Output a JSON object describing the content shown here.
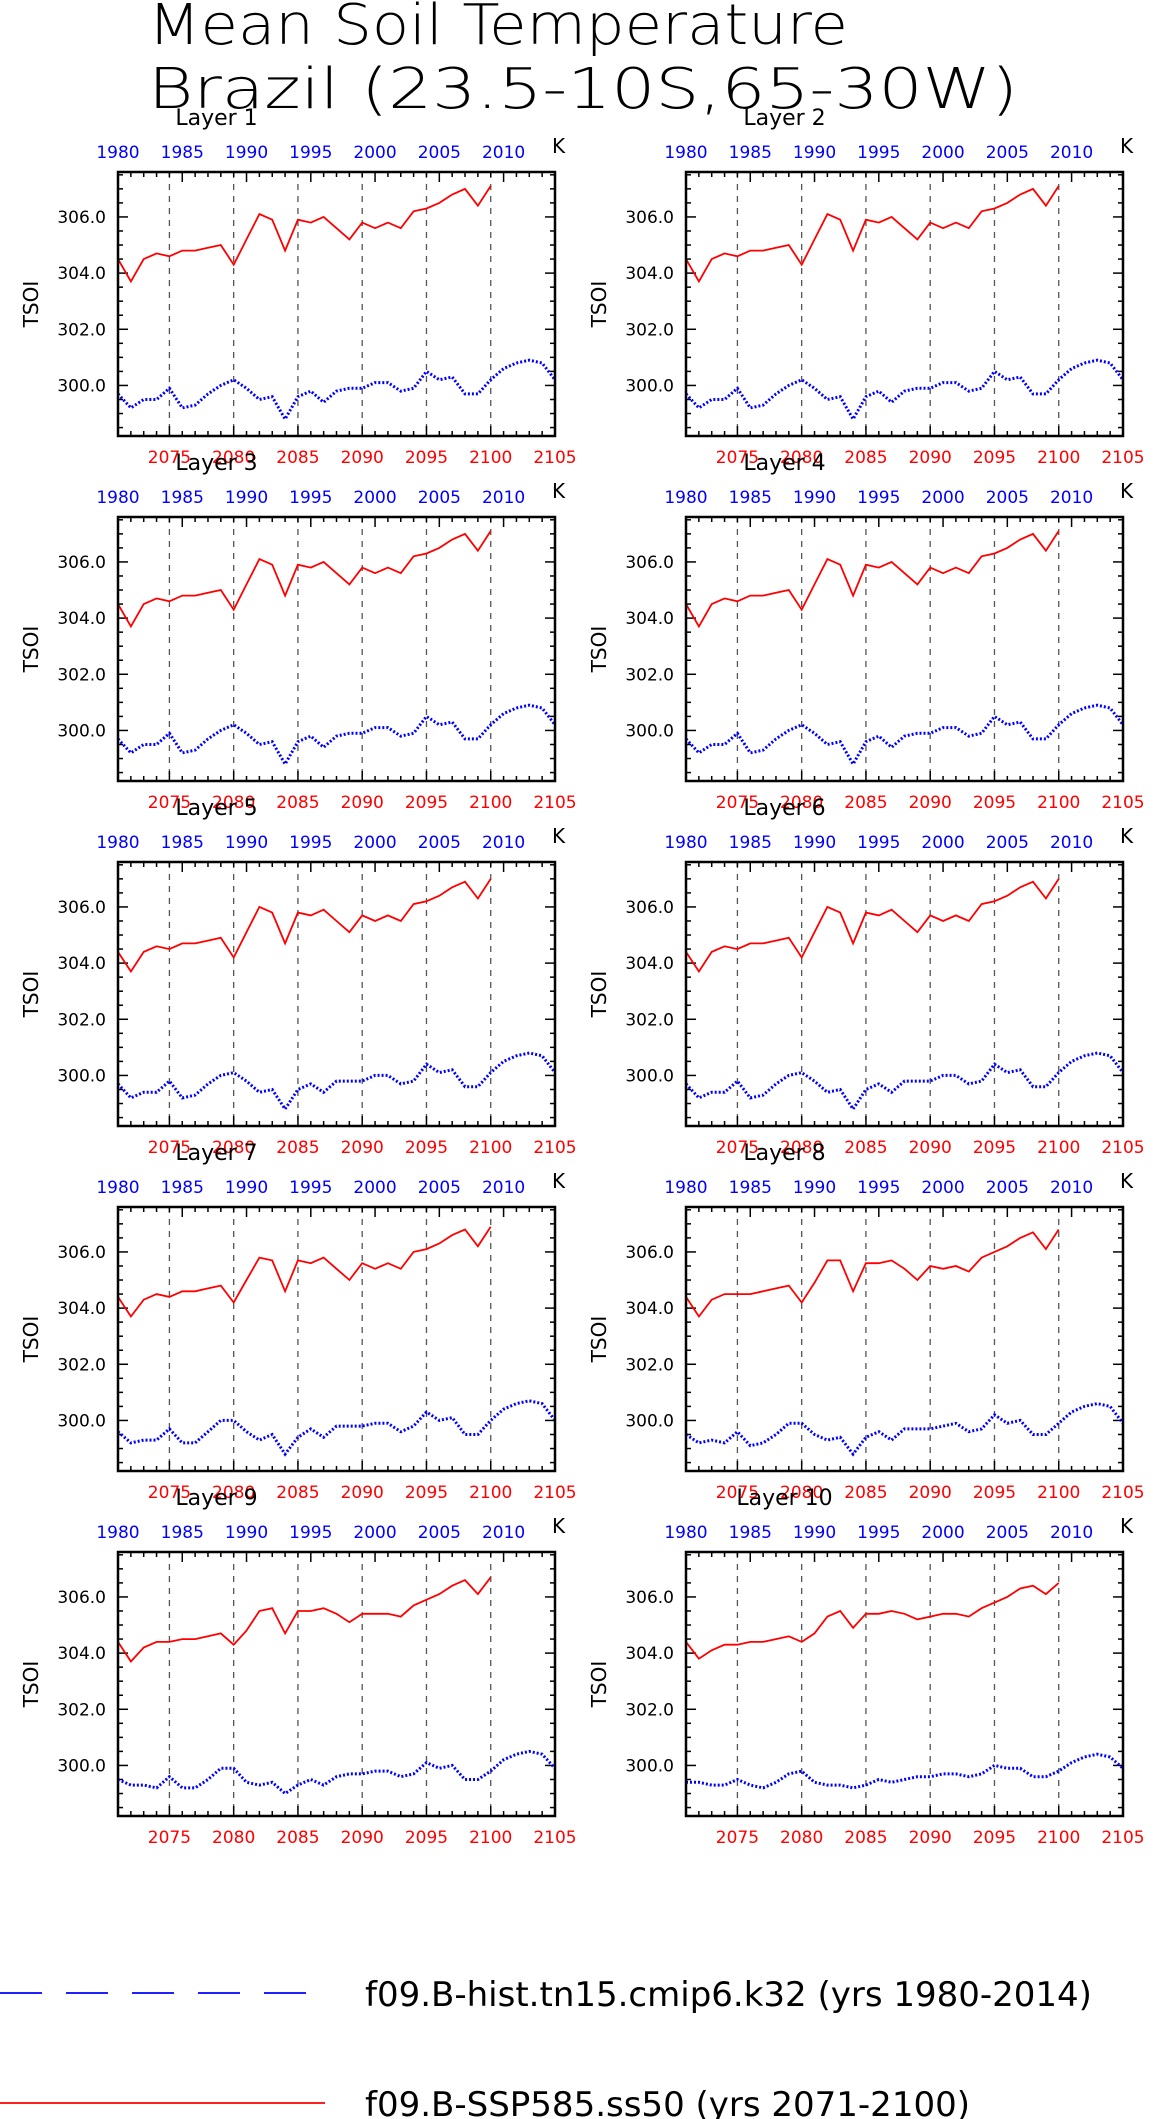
{
  "title_line1": "Mean Soil Temperature",
  "title_line2": "Brazil (23.5-10S,65-30W)",
  "units": "K",
  "ylabel": "TSOI",
  "colors": {
    "hist": "#0000ff",
    "ssp": "#ff0000",
    "axis": "#000000"
  },
  "legend": [
    {
      "label": "f09.B-hist.tn15.cmip6.k32 (yrs 1980-2014)",
      "color": "#0000ff",
      "style": "dashed"
    },
    {
      "label": "f09.B-SSP585.ss50 (yrs 2071-2100)",
      "color": "#ff0000",
      "style": "solid"
    }
  ],
  "chart_data": {
    "type": "line",
    "x_bottom": {
      "label": "",
      "range": [
        2071,
        2105
      ],
      "ticks": [
        2075,
        2080,
        2085,
        2090,
        2095,
        2100,
        2105
      ],
      "color": "#ff0000"
    },
    "x_top": {
      "label": "",
      "range": [
        1980,
        2014
      ],
      "ticks": [
        1980,
        1985,
        1990,
        1995,
        2000,
        2005,
        2010
      ],
      "color": "#0000ff"
    },
    "ylim": [
      298.2,
      307.6
    ],
    "yticks": [
      "300.0",
      "302.0",
      "304.0",
      "306.0"
    ],
    "grid": "vertical dashed lines at bottom ticks 2075-2100",
    "panels": [
      {
        "title": "Layer 1",
        "hist": [
          299.7,
          299.2,
          299.5,
          299.5,
          299.9,
          299.2,
          299.3,
          299.7,
          300.0,
          300.2,
          299.9,
          299.5,
          299.6,
          298.8,
          299.6,
          299.8,
          299.4,
          299.8,
          299.9,
          299.9,
          300.1,
          300.1,
          299.8,
          299.9,
          300.5,
          300.2,
          300.3,
          299.7,
          299.7,
          300.2,
          300.6,
          300.8,
          300.9,
          300.8,
          300.2
        ],
        "ssp": [
          304.5,
          303.7,
          304.5,
          304.7,
          304.6,
          304.8,
          304.8,
          304.9,
          305.0,
          304.3,
          305.2,
          306.1,
          305.9,
          304.8,
          305.9,
          305.8,
          306.0,
          305.6,
          305.2,
          305.8,
          305.6,
          305.8,
          305.6,
          306.2,
          306.3,
          306.5,
          306.8,
          307.0,
          306.4,
          307.1
        ]
      },
      {
        "title": "Layer 2",
        "hist": [
          299.7,
          299.2,
          299.5,
          299.5,
          299.9,
          299.2,
          299.3,
          299.7,
          300.0,
          300.2,
          299.9,
          299.5,
          299.6,
          298.8,
          299.6,
          299.8,
          299.4,
          299.8,
          299.9,
          299.9,
          300.1,
          300.1,
          299.8,
          299.9,
          300.5,
          300.2,
          300.3,
          299.7,
          299.7,
          300.2,
          300.6,
          300.8,
          300.9,
          300.8,
          300.2
        ],
        "ssp": [
          304.5,
          303.7,
          304.5,
          304.7,
          304.6,
          304.8,
          304.8,
          304.9,
          305.0,
          304.3,
          305.2,
          306.1,
          305.9,
          304.8,
          305.9,
          305.8,
          306.0,
          305.6,
          305.2,
          305.8,
          305.6,
          305.8,
          305.6,
          306.2,
          306.3,
          306.5,
          306.8,
          307.0,
          306.4,
          307.1
        ]
      },
      {
        "title": "Layer 3",
        "hist": [
          299.7,
          299.2,
          299.5,
          299.5,
          299.9,
          299.2,
          299.3,
          299.7,
          300.0,
          300.2,
          299.9,
          299.5,
          299.6,
          298.8,
          299.6,
          299.8,
          299.4,
          299.8,
          299.9,
          299.9,
          300.1,
          300.1,
          299.8,
          299.9,
          300.5,
          300.2,
          300.3,
          299.7,
          299.7,
          300.2,
          300.6,
          300.8,
          300.9,
          300.8,
          300.2
        ],
        "ssp": [
          304.5,
          303.7,
          304.5,
          304.7,
          304.6,
          304.8,
          304.8,
          304.9,
          305.0,
          304.3,
          305.2,
          306.1,
          305.9,
          304.8,
          305.9,
          305.8,
          306.0,
          305.6,
          305.2,
          305.8,
          305.6,
          305.8,
          305.6,
          306.2,
          306.3,
          306.5,
          306.8,
          307.0,
          306.4,
          307.1
        ]
      },
      {
        "title": "Layer 4",
        "hist": [
          299.7,
          299.2,
          299.5,
          299.5,
          299.9,
          299.2,
          299.3,
          299.7,
          300.0,
          300.2,
          299.9,
          299.5,
          299.6,
          298.8,
          299.6,
          299.8,
          299.4,
          299.8,
          299.9,
          299.9,
          300.1,
          300.1,
          299.8,
          299.9,
          300.5,
          300.2,
          300.3,
          299.7,
          299.7,
          300.2,
          300.6,
          300.8,
          300.9,
          300.8,
          300.2
        ],
        "ssp": [
          304.5,
          303.7,
          304.5,
          304.7,
          304.6,
          304.8,
          304.8,
          304.9,
          305.0,
          304.3,
          305.2,
          306.1,
          305.9,
          304.8,
          305.9,
          305.8,
          306.0,
          305.6,
          305.2,
          305.8,
          305.6,
          305.8,
          305.6,
          306.2,
          306.3,
          306.5,
          306.8,
          307.0,
          306.4,
          307.1
        ]
      },
      {
        "title": "Layer 5",
        "hist": [
          299.7,
          299.2,
          299.4,
          299.4,
          299.8,
          299.2,
          299.3,
          299.7,
          300.0,
          300.1,
          299.8,
          299.4,
          299.5,
          298.8,
          299.5,
          299.7,
          299.4,
          299.8,
          299.8,
          299.8,
          300.0,
          300.0,
          299.7,
          299.8,
          300.4,
          300.1,
          300.2,
          299.6,
          299.6,
          300.1,
          300.5,
          300.7,
          300.8,
          300.7,
          300.1
        ],
        "ssp": [
          304.4,
          303.7,
          304.4,
          304.6,
          304.5,
          304.7,
          304.7,
          304.8,
          304.9,
          304.2,
          305.1,
          306.0,
          305.8,
          304.7,
          305.8,
          305.7,
          305.9,
          305.5,
          305.1,
          305.7,
          305.5,
          305.7,
          305.5,
          306.1,
          306.2,
          306.4,
          306.7,
          306.9,
          306.3,
          307.0
        ]
      },
      {
        "title": "Layer 6",
        "hist": [
          299.7,
          299.2,
          299.4,
          299.4,
          299.8,
          299.2,
          299.3,
          299.7,
          300.0,
          300.1,
          299.8,
          299.4,
          299.5,
          298.8,
          299.5,
          299.7,
          299.4,
          299.8,
          299.8,
          299.8,
          300.0,
          300.0,
          299.7,
          299.8,
          300.4,
          300.1,
          300.2,
          299.6,
          299.6,
          300.1,
          300.5,
          300.7,
          300.8,
          300.7,
          300.1
        ],
        "ssp": [
          304.4,
          303.7,
          304.4,
          304.6,
          304.5,
          304.7,
          304.7,
          304.8,
          304.9,
          304.2,
          305.1,
          306.0,
          305.8,
          304.7,
          305.8,
          305.7,
          305.9,
          305.5,
          305.1,
          305.7,
          305.5,
          305.7,
          305.5,
          306.1,
          306.2,
          306.4,
          306.7,
          306.9,
          306.3,
          307.0
        ]
      },
      {
        "title": "Layer 7",
        "hist": [
          299.6,
          299.2,
          299.3,
          299.3,
          299.7,
          299.2,
          299.2,
          299.6,
          300.0,
          300.0,
          299.6,
          299.3,
          299.5,
          298.8,
          299.4,
          299.7,
          299.4,
          299.8,
          299.8,
          299.8,
          299.9,
          299.9,
          299.6,
          299.8,
          300.3,
          300.0,
          300.1,
          299.5,
          299.5,
          300.0,
          300.4,
          300.6,
          300.7,
          300.6,
          300.0
        ],
        "ssp": [
          304.4,
          303.7,
          304.3,
          304.5,
          304.4,
          304.6,
          304.6,
          304.7,
          304.8,
          304.2,
          305.0,
          305.8,
          305.7,
          304.6,
          305.7,
          305.6,
          305.8,
          305.4,
          305.0,
          305.6,
          305.4,
          305.6,
          305.4,
          306.0,
          306.1,
          306.3,
          306.6,
          306.8,
          306.2,
          306.9
        ]
      },
      {
        "title": "Layer 8",
        "hist": [
          299.5,
          299.2,
          299.3,
          299.2,
          299.6,
          299.1,
          299.2,
          299.5,
          299.9,
          299.9,
          299.5,
          299.3,
          299.4,
          298.8,
          299.4,
          299.6,
          299.3,
          299.7,
          299.7,
          299.7,
          299.8,
          299.9,
          299.6,
          299.7,
          300.2,
          299.9,
          300.0,
          299.5,
          299.5,
          299.9,
          300.3,
          300.5,
          300.6,
          300.5,
          299.9
        ],
        "ssp": [
          304.4,
          303.7,
          304.3,
          304.5,
          304.5,
          304.5,
          304.6,
          304.7,
          304.8,
          304.2,
          304.9,
          305.7,
          305.7,
          304.6,
          305.6,
          305.6,
          305.7,
          305.4,
          305.0,
          305.5,
          305.4,
          305.5,
          305.3,
          305.8,
          306.0,
          306.2,
          306.5,
          306.7,
          306.1,
          306.8
        ]
      },
      {
        "title": "Layer 9",
        "hist": [
          299.5,
          299.3,
          299.3,
          299.2,
          299.6,
          299.2,
          299.2,
          299.5,
          299.9,
          299.9,
          299.4,
          299.3,
          299.4,
          299.0,
          299.3,
          299.5,
          299.3,
          299.6,
          299.7,
          299.7,
          299.8,
          299.8,
          299.6,
          299.7,
          300.1,
          299.9,
          300.0,
          299.5,
          299.5,
          299.8,
          300.2,
          300.4,
          300.5,
          300.4,
          299.9
        ],
        "ssp": [
          304.4,
          303.7,
          304.2,
          304.4,
          304.4,
          304.5,
          304.5,
          304.6,
          304.7,
          304.3,
          304.8,
          305.5,
          305.6,
          304.7,
          305.5,
          305.5,
          305.6,
          305.4,
          305.1,
          305.4,
          305.4,
          305.4,
          305.3,
          305.7,
          305.9,
          306.1,
          306.4,
          306.6,
          306.1,
          306.7
        ]
      },
      {
        "title": "Layer 10",
        "hist": [
          299.4,
          299.4,
          299.3,
          299.3,
          299.5,
          299.3,
          299.2,
          299.4,
          299.7,
          299.8,
          299.4,
          299.3,
          299.3,
          299.2,
          299.3,
          299.5,
          299.4,
          299.5,
          299.6,
          299.6,
          299.7,
          299.7,
          299.6,
          299.7,
          300.0,
          299.9,
          299.9,
          299.6,
          299.6,
          299.8,
          300.1,
          300.3,
          300.4,
          300.3,
          299.9
        ],
        "ssp": [
          304.4,
          303.8,
          304.1,
          304.3,
          304.3,
          304.4,
          304.4,
          304.5,
          304.6,
          304.4,
          304.7,
          305.3,
          305.5,
          304.9,
          305.4,
          305.4,
          305.5,
          305.4,
          305.2,
          305.3,
          305.4,
          305.4,
          305.3,
          305.6,
          305.8,
          306.0,
          306.3,
          306.4,
          306.1,
          306.5
        ]
      }
    ]
  }
}
